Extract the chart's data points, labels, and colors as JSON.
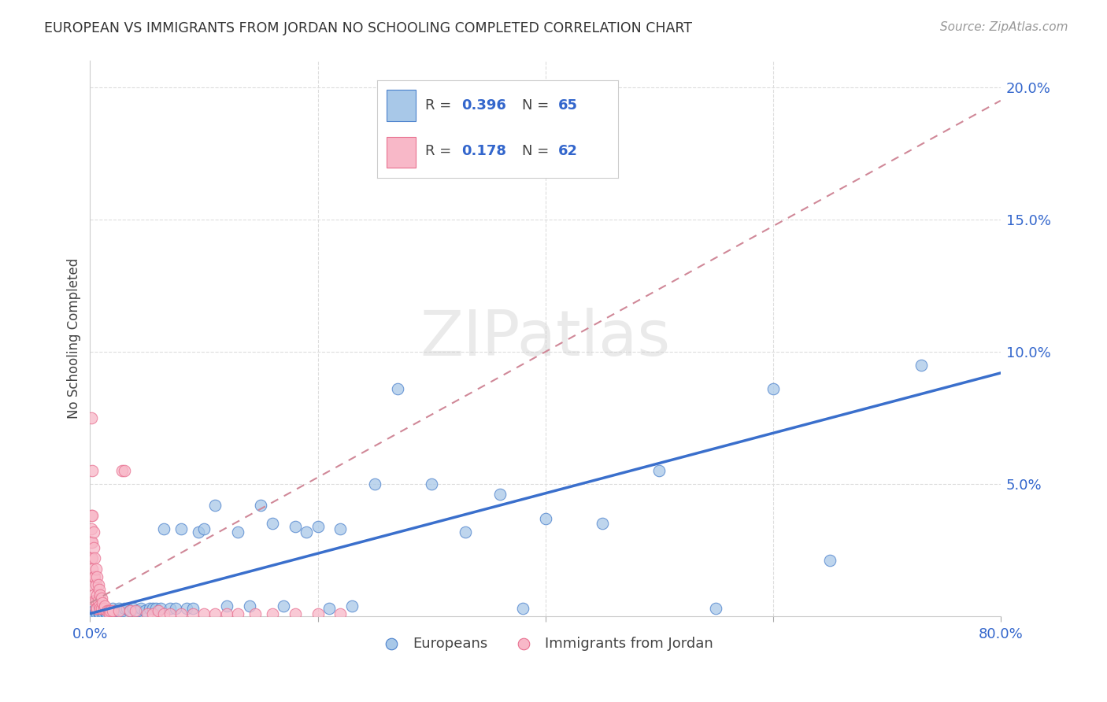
{
  "title": "EUROPEAN VS IMMIGRANTS FROM JORDAN NO SCHOOLING COMPLETED CORRELATION CHART",
  "source": "Source: ZipAtlas.com",
  "ylabel": "No Schooling Completed",
  "xlim": [
    0.0,
    0.8
  ],
  "ylim": [
    0.0,
    0.21
  ],
  "x_tick_pos": [
    0.0,
    0.2,
    0.4,
    0.6,
    0.8
  ],
  "x_tick_labels": [
    "0.0%",
    "",
    "",
    "",
    "80.0%"
  ],
  "y_tick_pos": [
    0.0,
    0.05,
    0.1,
    0.15,
    0.2
  ],
  "y_tick_labels": [
    "",
    "5.0%",
    "10.0%",
    "15.0%",
    "20.0%"
  ],
  "blue_fill": "#A8C8E8",
  "pink_fill": "#F8B8C8",
  "blue_edge": "#4A80CC",
  "pink_edge": "#E87090",
  "blue_line_color": "#3A6FCC",
  "pink_line_color": "#D08898",
  "legend_r_blue": "0.396",
  "legend_n_blue": "65",
  "legend_r_pink": "0.178",
  "legend_n_pink": "62",
  "watermark": "ZIPatlas",
  "blue_line_x0": 0.0,
  "blue_line_y0": 0.001,
  "blue_line_x1": 0.8,
  "blue_line_y1": 0.092,
  "pink_line_x0": 0.0,
  "pink_line_y0": 0.005,
  "pink_line_x1": 0.8,
  "pink_line_y1": 0.195,
  "blue_x": [
    0.002,
    0.003,
    0.004,
    0.005,
    0.006,
    0.007,
    0.008,
    0.009,
    0.01,
    0.011,
    0.012,
    0.013,
    0.014,
    0.015,
    0.016,
    0.018,
    0.02,
    0.022,
    0.025,
    0.028,
    0.03,
    0.032,
    0.035,
    0.038,
    0.042,
    0.045,
    0.048,
    0.052,
    0.055,
    0.058,
    0.062,
    0.065,
    0.07,
    0.075,
    0.08,
    0.085,
    0.09,
    0.095,
    0.1,
    0.11,
    0.12,
    0.13,
    0.14,
    0.15,
    0.16,
    0.17,
    0.18,
    0.19,
    0.2,
    0.21,
    0.22,
    0.23,
    0.25,
    0.27,
    0.3,
    0.33,
    0.36,
    0.38,
    0.4,
    0.45,
    0.5,
    0.55,
    0.6,
    0.65,
    0.73
  ],
  "blue_y": [
    0.001,
    0.002,
    0.001,
    0.002,
    0.001,
    0.002,
    0.001,
    0.001,
    0.002,
    0.001,
    0.001,
    0.002,
    0.001,
    0.001,
    0.002,
    0.001,
    0.003,
    0.002,
    0.003,
    0.002,
    0.003,
    0.003,
    0.002,
    0.003,
    0.002,
    0.003,
    0.002,
    0.003,
    0.003,
    0.003,
    0.003,
    0.033,
    0.003,
    0.003,
    0.033,
    0.003,
    0.003,
    0.032,
    0.033,
    0.042,
    0.004,
    0.032,
    0.004,
    0.042,
    0.035,
    0.004,
    0.034,
    0.032,
    0.034,
    0.003,
    0.033,
    0.004,
    0.05,
    0.086,
    0.05,
    0.032,
    0.046,
    0.003,
    0.037,
    0.035,
    0.055,
    0.003,
    0.086,
    0.021,
    0.095
  ],
  "pink_x": [
    0.001,
    0.001,
    0.001,
    0.001,
    0.002,
    0.002,
    0.002,
    0.002,
    0.002,
    0.003,
    0.003,
    0.003,
    0.003,
    0.004,
    0.004,
    0.004,
    0.005,
    0.005,
    0.005,
    0.005,
    0.006,
    0.006,
    0.006,
    0.007,
    0.007,
    0.008,
    0.008,
    0.009,
    0.009,
    0.01,
    0.01,
    0.011,
    0.012,
    0.013,
    0.015,
    0.016,
    0.017,
    0.018,
    0.02,
    0.025,
    0.028,
    0.03,
    0.035,
    0.04,
    0.05,
    0.055,
    0.06,
    0.065,
    0.07,
    0.08,
    0.09,
    0.1,
    0.11,
    0.12,
    0.13,
    0.145,
    0.16,
    0.18,
    0.2,
    0.22,
    0.001,
    0.002
  ],
  "pink_y": [
    0.038,
    0.033,
    0.028,
    0.022,
    0.038,
    0.028,
    0.022,
    0.018,
    0.012,
    0.032,
    0.026,
    0.015,
    0.008,
    0.022,
    0.015,
    0.006,
    0.018,
    0.012,
    0.006,
    0.003,
    0.015,
    0.008,
    0.003,
    0.012,
    0.006,
    0.01,
    0.004,
    0.008,
    0.003,
    0.007,
    0.003,
    0.005,
    0.003,
    0.004,
    0.002,
    0.002,
    0.001,
    0.002,
    0.002,
    0.002,
    0.055,
    0.055,
    0.002,
    0.002,
    0.001,
    0.001,
    0.002,
    0.001,
    0.001,
    0.001,
    0.001,
    0.001,
    0.001,
    0.001,
    0.001,
    0.001,
    0.001,
    0.001,
    0.001,
    0.001,
    0.075,
    0.055
  ]
}
